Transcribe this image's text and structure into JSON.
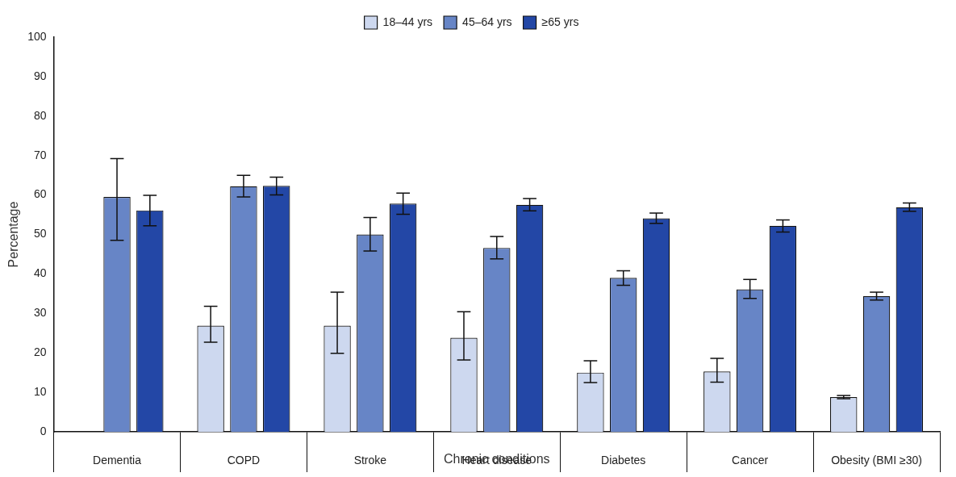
{
  "chart_data": {
    "type": "bar",
    "y_label": "Percentage",
    "x_label": "Chronic conditions",
    "categories": [
      "Dementia",
      "COPD",
      "Stroke",
      "Heart disease",
      "Diabetes",
      "Cancer",
      "Obesity (BMI ≥30)"
    ],
    "series": [
      {
        "name": "18–44 yrs",
        "color": "#cdd8ef",
        "values": [
          null,
          26.9,
          26.9,
          23.8,
          15.0,
          15.3,
          8.8
        ],
        "lower": [
          null,
          22.7,
          19.9,
          18.2,
          12.5,
          12.6,
          8.4
        ],
        "upper": [
          null,
          31.8,
          35.4,
          30.4,
          18.0,
          18.6,
          9.2
        ]
      },
      {
        "name": "45–64 yrs",
        "color": "#6785c6",
        "values": [
          59.5,
          62.2,
          50.0,
          46.6,
          39.0,
          36.1,
          34.4
        ],
        "lower": [
          48.5,
          59.5,
          45.8,
          43.8,
          37.1,
          33.8,
          33.4
        ],
        "upper": [
          69.2,
          65.0,
          54.3,
          49.5,
          40.8,
          38.6,
          35.4
        ]
      },
      {
        "name": "≥65 yrs",
        "color": "#2347a6",
        "values": [
          56.1,
          62.3,
          57.8,
          57.5,
          54.1,
          52.2,
          56.9
        ],
        "lower": [
          52.2,
          60.0,
          55.1,
          56.0,
          52.8,
          50.6,
          55.9
        ],
        "upper": [
          59.9,
          64.5,
          60.5,
          59.1,
          55.4,
          53.7,
          58.0
        ]
      }
    ],
    "ylim": [
      0,
      100
    ],
    "yticks": [
      0,
      10,
      20,
      30,
      40,
      50,
      60,
      70,
      80,
      90,
      100
    ],
    "grid": false,
    "legend": "top"
  }
}
